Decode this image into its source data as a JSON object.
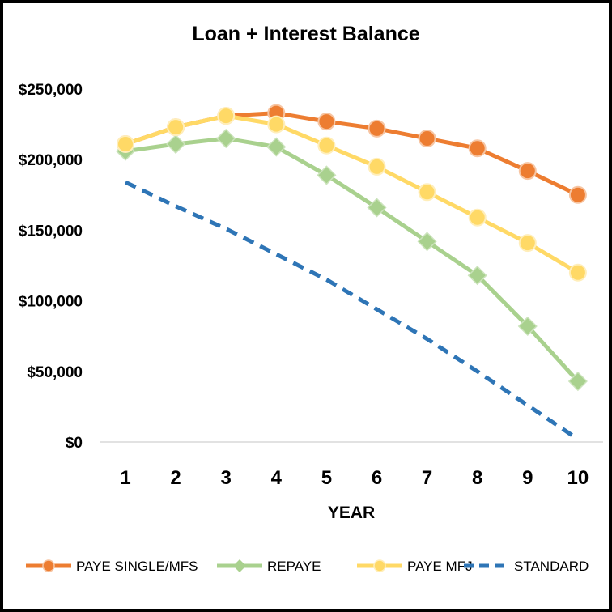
{
  "chart_data": {
    "type": "line",
    "title": "Loan + Interest Balance",
    "xlabel": "YEAR",
    "ylabel": "",
    "x": [
      1,
      2,
      3,
      4,
      5,
      6,
      7,
      8,
      9,
      10
    ],
    "xticks": [
      "1",
      "2",
      "3",
      "4",
      "5",
      "6",
      "7",
      "8",
      "9",
      "10"
    ],
    "ylim": [
      0,
      250000
    ],
    "yticks": [
      0,
      50000,
      100000,
      150000,
      200000,
      250000
    ],
    "ytick_labels": [
      "$0",
      "$50,000",
      "$100,000",
      "$150,000",
      "$200,000",
      "$250,000"
    ],
    "grid": false,
    "legend_position": "bottom",
    "series": [
      {
        "name": "PAYE SINGLE/MFS",
        "color": "#ED7D31",
        "marker": "circle",
        "style": "solid",
        "values": [
          211000,
          223000,
          231000,
          233000,
          227000,
          222000,
          215000,
          208000,
          192000,
          175000
        ]
      },
      {
        "name": "REPAYE",
        "color": "#A9D18E",
        "marker": "diamond",
        "style": "solid",
        "values": [
          206000,
          211000,
          215000,
          209000,
          189000,
          166000,
          142000,
          118000,
          82000,
          43000
        ]
      },
      {
        "name": "PAYE MFJ",
        "color": "#FFD966",
        "marker": "circle",
        "style": "solid",
        "values": [
          211000,
          223000,
          231000,
          225000,
          210000,
          195000,
          177000,
          159000,
          141000,
          120000
        ]
      },
      {
        "name": "STANDARD",
        "color": "#2E75B6",
        "marker": "none",
        "style": "dashed",
        "values": [
          184000,
          167000,
          151000,
          133000,
          115000,
          94000,
          73000,
          50000,
          26000,
          2000
        ]
      }
    ]
  }
}
